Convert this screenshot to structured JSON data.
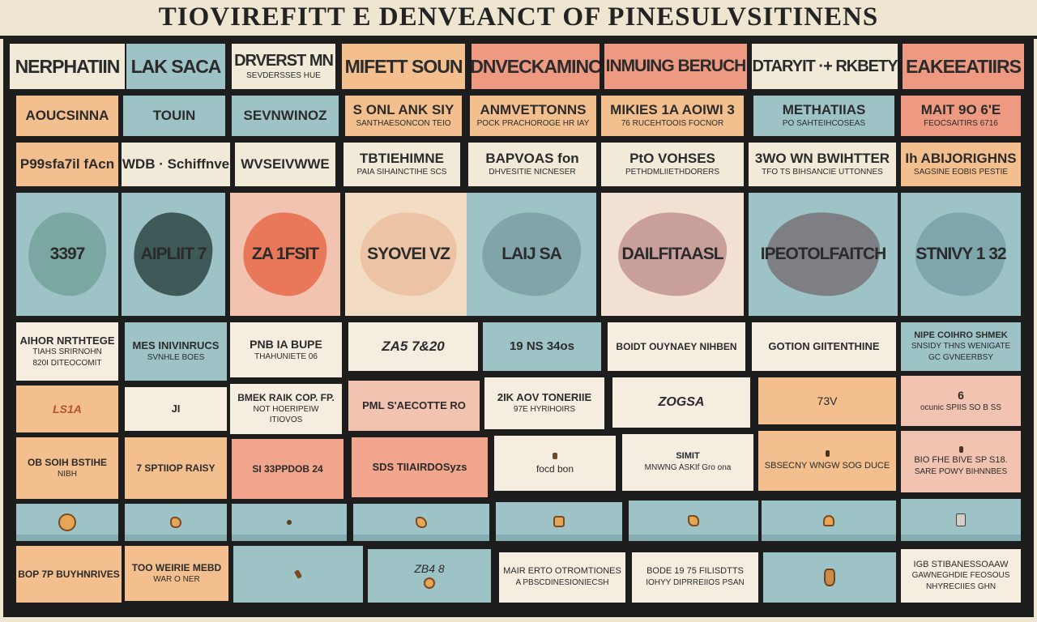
{
  "title": "TIOVIREFITT E DENVEANCT OF PINESULVSITINENS",
  "colors": {
    "board": "#1d1d1d",
    "cream": "#f1ead9",
    "teal": "#9ec3c6",
    "peach": "#f3bf8e",
    "coral": "#ee9a82",
    "pink": "#f2c3b0"
  },
  "headers": [
    "NERPHATIIN",
    "LAK SACA",
    "DRVERST MN",
    "MIFETT SOUN",
    "DNVECKAMINC",
    "INMUING BERUCH",
    "DTARYIT ·+ RKBETY",
    "EAKEEATIIRS"
  ],
  "header_subs": [
    "",
    "",
    "SEVDERSSES HUE",
    "",
    "",
    "",
    "",
    ""
  ],
  "row2": [
    {
      "main": "AOUCSINNA",
      "sub": ""
    },
    {
      "main": "TOUIN",
      "sub": ""
    },
    {
      "main": "SEVNWINOZ",
      "sub": ""
    },
    {
      "main": "S ONL ANK SIY",
      "sub": "SANTHAESONCON TEIO"
    },
    {
      "main": "ANMVETTONNS",
      "sub": "POCK PRACHOROGE HR IAY"
    },
    {
      "main": "MIKIES 1A  AOIWI 3",
      "sub": "76 RUCEHTOOIS FOCNOR"
    },
    {
      "main": "METHATIIAS",
      "sub": "PO SAHTEIHCOSEAS"
    },
    {
      "main": "MAIT 9O 6'E",
      "sub": "FEOCSAITIRS 6716"
    }
  ],
  "row3": [
    {
      "main": "P99sfa7il fAcn",
      "sub": ""
    },
    {
      "main": "WDB ·  Schiffnve",
      "sub": ""
    },
    {
      "main": "WVSEIVWWE",
      "sub": ""
    },
    {
      "main": "TBTIEHIMNE",
      "sub": "PAIA SIHAINCTIHE SCS"
    },
    {
      "main": "BAPVOAS fon",
      "sub": "DHVESITIE NICNESER"
    },
    {
      "main": "PtO VOHSES",
      "sub": "PETHDMLIIETHDORERS"
    },
    {
      "main": "3WO WN BWIHTTER",
      "sub": "TFO TS BIHSANCIE UTTONNES"
    },
    {
      "main": "Ih ABIJORIGHNS",
      "sub": "SAGSINE EOBIS PESTIE"
    }
  ],
  "blobs": [
    {
      "label": "3397",
      "color": "#5e8f86"
    },
    {
      "label": "AIPLIIT 7",
      "color": "#3f5858"
    },
    {
      "label": "ZA 1FSIT",
      "color": "#e9775a"
    },
    {
      "label": "SYOVEI VZ",
      "color": "#edc3a5"
    },
    {
      "label": "LAIJ SA",
      "color": "#6c8f96"
    },
    {
      "label": "DAILFITAASL",
      "color": "#c89f9a"
    },
    {
      "label": "IPEOTOLFAITCH",
      "color": "#6f6268"
    },
    {
      "label": "STNIVY 1  32",
      "color": "#6f9aa3"
    }
  ],
  "row5": [
    {
      "main": "AIHOR NRTHTEGE",
      "sub": "TIAHS SRIRNOHN",
      "sub2": "820I DITEOCOMIT"
    },
    {
      "main": "MES INIVINRUCS",
      "sub": "SVNHLE BOES",
      "sub2": ""
    },
    {
      "main": "PNB IA BUPE",
      "sub": "THAHUNIETE 06",
      "sub2": ""
    },
    {
      "main": "ZA5 7&20",
      "sub": "",
      "sub2": ""
    },
    {
      "main": "19 NS  34os",
      "sub": "",
      "sub2": ""
    },
    {
      "main": "BOIDT OUYNAEY NIHBEN",
      "sub": "",
      "sub2": ""
    },
    {
      "main": "GOTION GIITENTHINE",
      "sub": "",
      "sub2": ""
    },
    {
      "main": "NIPE COIHRO SHMEK",
      "sub": "SNSIDY THNS WENIGATE",
      "sub2": "GC GVNEERBSY"
    }
  ],
  "row6": [
    {
      "main": "LS1A",
      "sub": "",
      "sub2": ""
    },
    {
      "main": "JI",
      "sub": "",
      "sub2": ""
    },
    {
      "main": "BMEK RAIK COP. FP.",
      "sub": "NOT HOERIPEIW",
      "sub2": "ITIOVOS"
    },
    {
      "main": "PML S'AECOTTE RO",
      "sub": "",
      "sub2": ""
    },
    {
      "main": "2IK AOV TONERIIE",
      "sub": "97E HYRIHOIRS",
      "sub2": ""
    },
    {
      "main": "ZOGSA",
      "sub": "",
      "sub2": ""
    },
    {
      "main": "73V",
      "sub": "",
      "sub2": ""
    },
    {
      "main": "6",
      "sub": "ocunic SPIIS SO B SS",
      "sub2": ""
    }
  ],
  "row7": [
    {
      "main": "OB SOIH BSTIHE",
      "sub": "NIBH",
      "sub2": ""
    },
    {
      "main": "7 SPTIIOP RAISY",
      "sub": "",
      "sub2": ""
    },
    {
      "main": "SI 33PPDOB 24",
      "sub": "",
      "sub2": ""
    },
    {
      "main": "SDS TIIAIRDOSyzs",
      "sub": "",
      "sub2": ""
    },
    {
      "main": "focd bon",
      "sub": "",
      "sub2": ""
    },
    {
      "main": "SIMIT",
      "sub": "MNWNG ASKIf Gro ona",
      "sub2": ""
    },
    {
      "main": "SBSECNY WNGW SOG DUCE",
      "sub": "",
      "sub2": ""
    },
    {
      "main": "BIO FHE BIVE SP S18.",
      "sub": "SARE POWY BIHNNBES",
      "sub2": ""
    }
  ],
  "row9": [
    {
      "main": "BOP 7P BUYHNRIVES",
      "sub": "",
      "sub2": ""
    },
    {
      "main": "TOO WEIRIE MEBD",
      "sub": "WAR O NER",
      "sub2": ""
    },
    {
      "main": "",
      "sub": "",
      "sub2": ""
    },
    {
      "main": "ZB4  8",
      "sub": "",
      "sub2": ""
    },
    {
      "main": "MAIR ERTO OTROMTIONES",
      "sub": "A PBSCDINESIONIECSH",
      "sub2": ""
    },
    {
      "main": "BODE 19 75 FILISDTTS",
      "sub": "IOHYY DIPRREIIOS PSAN",
      "sub2": ""
    },
    {
      "main": "",
      "sub": "",
      "sub2": ""
    },
    {
      "main": "IGB STIBANESSOAAW",
      "sub": "GAWNEGHDIE FEOSOUS",
      "sub2": "NHYRECIIES GHN"
    }
  ],
  "icons": {
    "coin": "coin-icon",
    "nugget": "nugget-icon"
  }
}
